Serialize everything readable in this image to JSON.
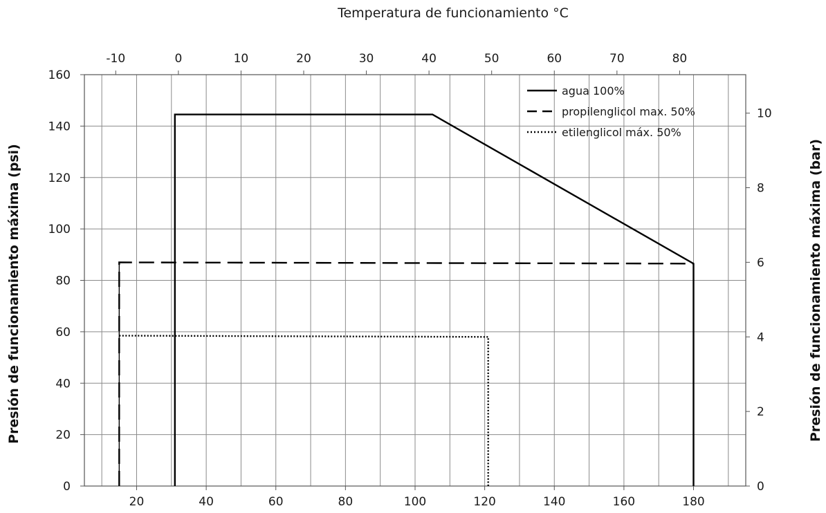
{
  "chart_data": {
    "type": "line",
    "title": "",
    "top_axis_label": "Temperatura de funcionamiento °C",
    "left_axis_label": "Presión de funcionamiento máxima (psi)",
    "right_axis_label": "Presión de funcionamiento máxima (bar)",
    "xlim_f": [
      5,
      195
    ],
    "ylim_psi": [
      0,
      160
    ],
    "bottom_ticks": [
      "20",
      "40",
      "60",
      "80",
      "100",
      "120",
      "140",
      "160",
      "180"
    ],
    "top_ticks": [
      "-10",
      "0",
      "10",
      "20",
      "30",
      "40",
      "50",
      "60",
      "70",
      "80"
    ],
    "left_ticks": [
      "0",
      "20",
      "40",
      "60",
      "80",
      "100",
      "120",
      "140",
      "160"
    ],
    "right_ticks": [
      "0",
      "2",
      "4",
      "6",
      "8",
      "10"
    ],
    "grid": true,
    "legend_position": "top-right",
    "series": [
      {
        "name": "agua 100%",
        "style": "solid",
        "color": "#000000",
        "x": [
          31,
          31,
          105,
          180,
          180
        ],
        "y": [
          0,
          144.5,
          144.5,
          86.5,
          0
        ]
      },
      {
        "name": "propilenglicol max. 50%",
        "style": "dashed",
        "color": "#000000",
        "x": [
          15,
          15,
          180
        ],
        "y": [
          0,
          87,
          86.5
        ]
      },
      {
        "name": "etilenglicol máx. 50%",
        "style": "dotted",
        "color": "#000000",
        "x": [
          15,
          121,
          121
        ],
        "y": [
          58.5,
          58,
          0
        ]
      }
    ]
  }
}
